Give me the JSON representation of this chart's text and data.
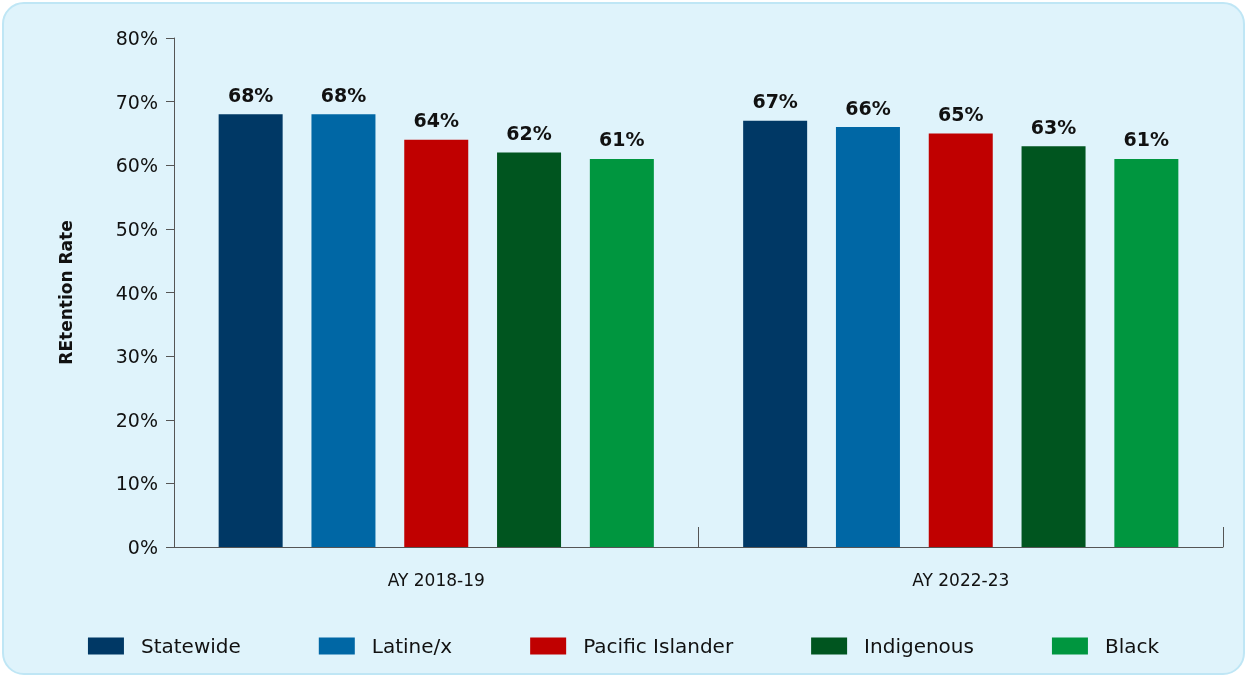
{
  "chart_data": {
    "type": "bar",
    "ylabel": "REtention Rate",
    "categories": [
      "AY 2018-19",
      "AY 2022-23"
    ],
    "series": [
      {
        "name": "Statewide",
        "color": "#003865",
        "values": [
          68,
          67
        ],
        "value_labels": [
          "68%",
          "67%"
        ]
      },
      {
        "name": "Latine/x",
        "color": "#0067a5",
        "values": [
          68,
          66
        ],
        "value_labels": [
          "68%",
          "66%"
        ]
      },
      {
        "name": "Pacific Islander",
        "color": "#c00000",
        "values": [
          64,
          65
        ],
        "value_labels": [
          "64%",
          "65%"
        ]
      },
      {
        "name": "Indigenous",
        "color": "#00551f",
        "values": [
          62,
          63
        ],
        "value_labels": [
          "62%",
          "63%"
        ]
      },
      {
        "name": "Black",
        "color": "#00963f",
        "values": [
          61,
          61
        ],
        "value_labels": [
          "61%",
          "61%"
        ]
      }
    ],
    "ylim": [
      0,
      80
    ],
    "yticks": [
      {
        "value": 0,
        "label": "0%"
      },
      {
        "value": 10,
        "label": "10%"
      },
      {
        "value": 20,
        "label": "20%"
      },
      {
        "value": 30,
        "label": "30%"
      },
      {
        "value": 40,
        "label": "40%"
      },
      {
        "value": 50,
        "label": "50%"
      },
      {
        "value": 60,
        "label": "60%"
      },
      {
        "value": 70,
        "label": "70%"
      },
      {
        "value": 80,
        "label": "80%"
      }
    ],
    "grid": false,
    "legend": "bottom"
  }
}
